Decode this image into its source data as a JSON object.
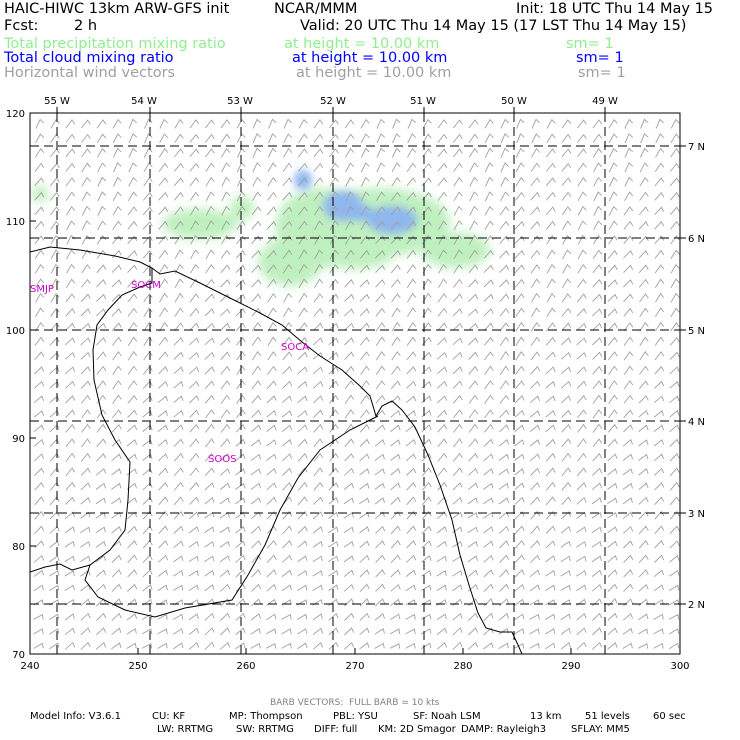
{
  "header": {
    "title": "HAIC-HIWC 13km ARW-GFS init",
    "org": "NCAR/MMM",
    "init": "Init: 18 UTC Thu 14 May 15",
    "fcst_label": "Fcst:",
    "fcst_value": "2 h",
    "valid": "Valid: 20 UTC Thu 14 May 15 (17 LST Thu 14 May 15)"
  },
  "fields": [
    {
      "name": "Total precipitation mixing ratio",
      "height": "at height = 10.00 km",
      "sm": "sm= 1",
      "color": "#90ee90"
    },
    {
      "name": "Total cloud mixing ratio",
      "height": "at height = 10.00 km",
      "sm": "sm= 1",
      "color": "#0000ff"
    },
    {
      "name": "Horizontal wind vectors",
      "height": "at height = 10.00 km",
      "sm": "sm= 1",
      "color": "#a0a0a0"
    }
  ],
  "map": {
    "top_lon_labels": [
      "55 W",
      "54 W",
      "53 W",
      "52 W",
      "51 W",
      "50 W",
      "49 W"
    ],
    "right_lat_labels": [
      "7 N",
      "6 N",
      "5 N",
      "4 N",
      "3 N",
      "2 N"
    ],
    "left_y_ticks": [
      "120",
      "110",
      "100",
      "90",
      "80",
      "70"
    ],
    "bottom_x_ticks": [
      "240",
      "250",
      "260",
      "270",
      "280",
      "290",
      "300"
    ],
    "station_labels": [
      "SMJP",
      "SOCM",
      "SOCA",
      "SOOS"
    ]
  },
  "footer": {
    "barb": "BARB VECTORS:  FULL BARB = 10 kts",
    "line1": [
      "Model Info: V3.6.1",
      "CU: KF",
      "MP: Thompson",
      "PBL: YSU",
      "SF: Noah LSM",
      "13 km",
      "51 levels",
      "60 sec"
    ],
    "line2": [
      "LW: RRTMG",
      "SW: RRTMG",
      "DIFF: full",
      "KM: 2D Smagor",
      "DAMP: Rayleigh3",
      "SFLAY: MM5"
    ]
  }
}
